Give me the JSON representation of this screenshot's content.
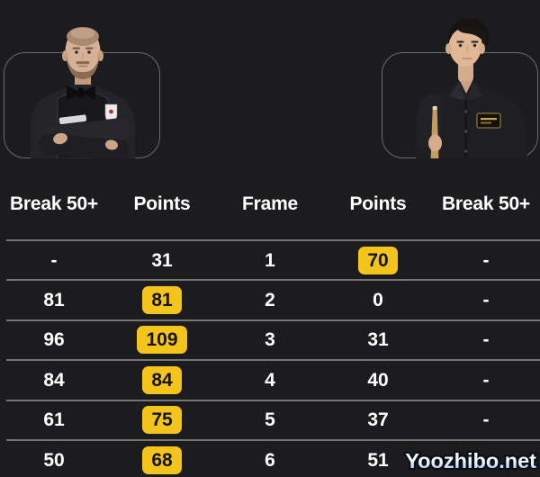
{
  "colors": {
    "background": "#1c1c1e",
    "card_border": "#6a6a6a",
    "divider": "#757575",
    "text": "#ffffff",
    "highlight": "#f3c41c",
    "highlight_text": "#141414",
    "watermark_top": "#ffffff",
    "watermark_bottom": "#9cbede",
    "watermark_outline": "#0a0f18"
  },
  "players": {
    "left": {
      "photo": "player-left-arms-crossed-dark-vest-bow-tie-shield-badge"
    },
    "right": {
      "photo": "player-right-dark-shirt-gold-badge-holding-cue"
    }
  },
  "table": {
    "column_names": [
      "break-50-left",
      "points-left",
      "frame",
      "points-right",
      "break-50-right"
    ],
    "headers": [
      "Break 50+",
      "Points",
      "Frame",
      "Points",
      "Break 50+"
    ],
    "rows": [
      {
        "cells": [
          {
            "text": "-"
          },
          {
            "text": "31"
          },
          {
            "text": "1"
          },
          {
            "text": "70",
            "highlight": true
          },
          {
            "text": "-"
          }
        ]
      },
      {
        "cells": [
          {
            "text": "81"
          },
          {
            "text": "81",
            "highlight": true
          },
          {
            "text": "2"
          },
          {
            "text": "0"
          },
          {
            "text": "-"
          }
        ]
      },
      {
        "cells": [
          {
            "text": "96"
          },
          {
            "text": "109",
            "highlight": true
          },
          {
            "text": "3"
          },
          {
            "text": "31"
          },
          {
            "text": "-"
          }
        ]
      },
      {
        "cells": [
          {
            "text": "84"
          },
          {
            "text": "84",
            "highlight": true
          },
          {
            "text": "4"
          },
          {
            "text": "40"
          },
          {
            "text": "-"
          }
        ]
      },
      {
        "cells": [
          {
            "text": "61"
          },
          {
            "text": "75",
            "highlight": true
          },
          {
            "text": "5"
          },
          {
            "text": "37"
          },
          {
            "text": "-"
          }
        ]
      },
      {
        "cells": [
          {
            "text": "50"
          },
          {
            "text": "68",
            "highlight": true
          },
          {
            "text": "6"
          },
          {
            "text": "51"
          },
          {
            "text": "-"
          }
        ]
      }
    ]
  },
  "watermark": {
    "text": "Yoozhibo.net"
  }
}
